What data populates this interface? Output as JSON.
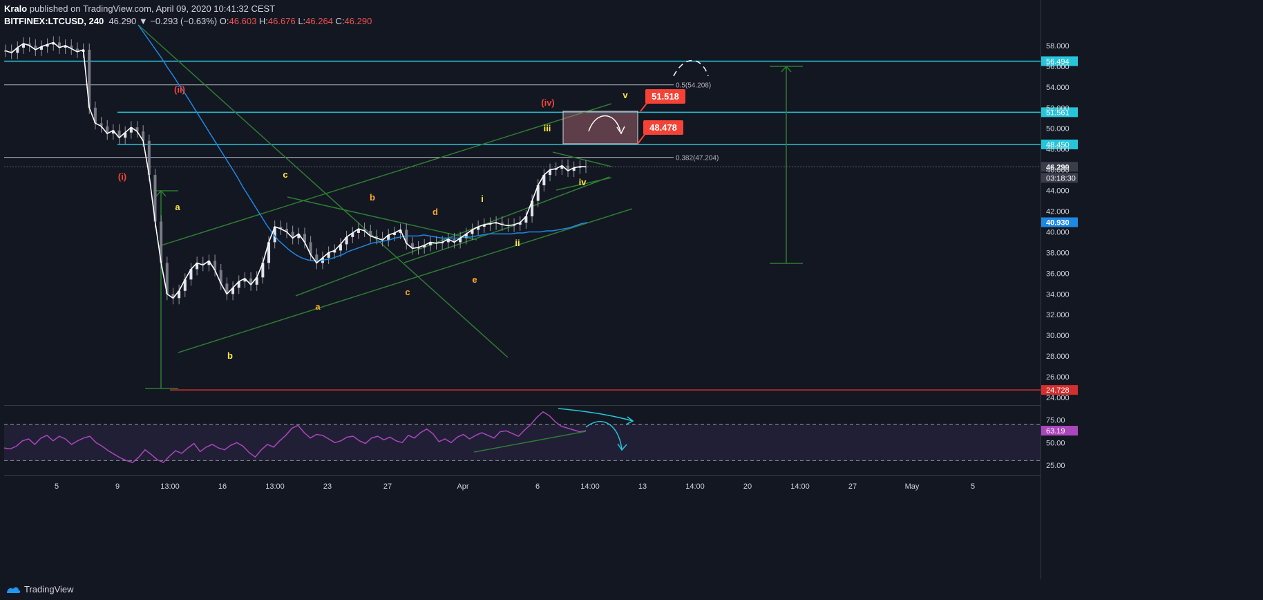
{
  "header": {
    "publisher_user": "Kralo",
    "publisher_rest": " published on TradingView.com, April 09, 2020 10:41:32 CEST",
    "symbol": "BITFINEX:LTCUSD, 240",
    "last": "46.290",
    "change": "▼ −0.293 (−0.63%)",
    "o_label": "O:",
    "o_value": "46.603",
    "h_label": "H:",
    "h_value": "46.676",
    "l_label": "L:",
    "l_value": "46.264",
    "c_label": "C:",
    "c_value": "46.290"
  },
  "footer": {
    "brand": "TradingView"
  },
  "colors": {
    "background": "#131722",
    "cyan_level": "#26c6da",
    "grey_level": "#b2b5be",
    "red_level": "#d32f2f",
    "trend_green": "#2e7d32",
    "price_white": "#ffffff",
    "ma_blue": "#1e88e5",
    "rsi_purple": "#ab47bc",
    "label_red": "#f44336"
  },
  "chart_data": [
    {
      "type": "line",
      "title": "",
      "price_axis": {
        "ticks": [
          "58.000",
          "56.000",
          "54.000",
          "52.000",
          "50.000",
          "48.000",
          "46.000",
          "44.000",
          "42.000",
          "40.000",
          "38.000",
          "36.000",
          "34.000",
          "32.000",
          "30.000",
          "28.000",
          "26.000",
          "24.000"
        ],
        "tick_values": [
          58,
          56,
          54,
          52,
          50,
          48,
          46,
          44,
          42,
          40,
          38,
          36,
          34,
          32,
          30,
          28,
          26,
          24
        ],
        "ylim": [
          23.4,
          60
        ]
      },
      "time_axis": {
        "ticks": [
          "5",
          "9",
          "13:00",
          "16",
          "13:00",
          "23",
          "27",
          "Apr",
          "6",
          "14:00",
          "13",
          "14:00",
          "20",
          "14:00",
          "27",
          "May",
          "5"
        ]
      },
      "horizontal_levels": [
        {
          "name": "resistance-56-494",
          "value": 56.494,
          "label": "56.494",
          "color": "#26c6da"
        },
        {
          "name": "fib-0-5",
          "value": 54.208,
          "label": "0.5(54.208)",
          "color": "#b2b5be"
        },
        {
          "name": "resistance-51-561",
          "value": 51.561,
          "label": "51.561",
          "color": "#26c6da"
        },
        {
          "name": "support-48-450",
          "value": 48.45,
          "label": "48.450",
          "color": "#26c6da"
        },
        {
          "name": "fib-0-382",
          "value": 47.204,
          "label": "0.382(47.204)",
          "color": "#b2b5be"
        },
        {
          "name": "low-24-728",
          "value": 24.728,
          "label": "24.728",
          "color": "#d32f2f"
        }
      ],
      "price_tags": [
        {
          "name": "last-price",
          "value": 46.29,
          "label": "46.290",
          "sub": "03:18:30",
          "color": "#3a3e4a"
        },
        {
          "name": "ma-value",
          "value": 40.93,
          "label": "40.930",
          "color": "#1e88e5"
        }
      ],
      "callouts": [
        {
          "name": "target-51-518",
          "label": "51.518",
          "value": 51.518
        },
        {
          "name": "target-48-478",
          "label": "48.478",
          "value": 48.478
        }
      ],
      "price_series": {
        "name": "",
        "values": [
          57.5,
          57.3,
          57.8,
          58.2,
          58.0,
          57.6,
          57.9,
          58.1,
          58.3,
          57.8,
          58.0,
          57.7,
          57.4,
          57.6,
          52.0,
          50.5,
          50.2,
          49.5,
          49.8,
          49.1,
          49.6,
          50.1,
          49.7,
          48.8,
          45.5,
          41.0,
          37.0,
          34.0,
          33.6,
          34.3,
          35.4,
          36.4,
          37.0,
          36.8,
          37.2,
          36.3,
          35.0,
          34.0,
          34.6,
          35.2,
          35.5,
          34.9,
          35.6,
          37.0,
          39.0,
          40.5,
          40.3,
          40.0,
          39.4,
          39.8,
          39.0,
          37.8,
          37.0,
          37.5,
          38.0,
          38.2,
          38.8,
          39.5,
          39.9,
          40.3,
          40.1,
          39.6,
          39.4,
          39.2,
          39.7,
          39.9,
          40.2,
          38.9,
          38.4,
          38.5,
          38.7,
          39.0,
          38.9,
          39.0,
          39.3,
          39.0,
          39.4,
          39.8,
          40.2,
          40.5,
          40.7,
          40.8,
          40.9,
          40.7,
          40.6,
          40.7,
          40.9,
          41.5,
          43.0,
          44.5,
          45.5,
          46.0,
          46.1,
          46.4,
          45.9,
          46.2,
          46.3,
          46.29
        ]
      },
      "ma_series": {
        "name": "",
        "values": [
          60.0,
          59.2,
          58.4,
          57.6,
          56.8,
          55.9,
          55.1,
          54.2,
          53.4,
          52.5,
          51.6,
          50.7,
          49.8,
          48.9,
          48.0,
          47.1,
          46.2,
          45.3,
          44.3,
          43.4,
          42.5,
          41.6,
          40.7,
          39.9,
          39.2,
          38.7,
          38.2,
          37.8,
          37.5,
          37.3,
          37.2,
          37.2,
          37.3,
          37.4,
          37.6,
          37.8,
          38.1,
          38.3,
          38.5,
          38.7,
          38.9,
          39.0,
          39.1,
          39.2,
          39.4,
          39.5,
          39.6,
          39.6,
          39.6,
          39.7,
          39.6,
          39.5,
          39.4,
          39.4,
          39.4,
          39.4,
          39.5,
          39.5,
          39.6,
          39.7,
          39.8,
          39.8,
          39.8,
          39.8,
          39.8,
          39.9,
          39.9,
          40.0,
          40.0,
          40.0,
          40.1,
          40.1,
          40.2,
          40.3,
          40.4,
          40.6,
          40.8,
          40.9
        ]
      },
      "wave_labels": [
        {
          "text": "(i)",
          "color": "#f44336"
        },
        {
          "text": "(ii)",
          "color": "#f44336"
        },
        {
          "text": "(iv)",
          "color": "#f44336"
        },
        {
          "text": "a",
          "color": "#ffeb3b"
        },
        {
          "text": "b",
          "color": "#ffeb3b"
        },
        {
          "text": "c",
          "color": "#ffeb3b"
        },
        {
          "text": "a",
          "color": "#ffa726"
        },
        {
          "text": "b",
          "color": "#ffa726"
        },
        {
          "text": "c",
          "color": "#ffa726"
        },
        {
          "text": "d",
          "color": "#ffa726"
        },
        {
          "text": "e",
          "color": "#ffa726"
        },
        {
          "text": "i",
          "color": "#ffeb3b"
        },
        {
          "text": "ii",
          "color": "#ffeb3b"
        },
        {
          "text": "iii",
          "color": "#ffeb3b"
        },
        {
          "text": "iv",
          "color": "#ffeb3b"
        },
        {
          "text": "v",
          "color": "#ffeb3b"
        }
      ]
    },
    {
      "type": "line",
      "title": "",
      "ylim": [
        15,
        90
      ],
      "y_ticks": [
        "75.00",
        "50.00",
        "25.00"
      ],
      "y_tick_values": [
        75,
        50,
        25
      ],
      "band": [
        30,
        70
      ],
      "last_value": "63.19",
      "rsi_series": {
        "name": "",
        "values": [
          44,
          43,
          46,
          52,
          54,
          48,
          55,
          58,
          52,
          57,
          54,
          48,
          52,
          55,
          57,
          50,
          46,
          41,
          37,
          33,
          30,
          28,
          34,
          42,
          37,
          31,
          28,
          35,
          41,
          38,
          44,
          49,
          40,
          45,
          48,
          44,
          42,
          47,
          50,
          46,
          39,
          34,
          42,
          48,
          45,
          52,
          58,
          66,
          69,
          61,
          55,
          59,
          58,
          54,
          50,
          52,
          56,
          57,
          52,
          49,
          55,
          57,
          53,
          56,
          52,
          50,
          58,
          55,
          61,
          65,
          60,
          51,
          54,
          50,
          56,
          59,
          54,
          58,
          61,
          58,
          55,
          62,
          63,
          60,
          57,
          64,
          70,
          78,
          84,
          80,
          73,
          68,
          66,
          64,
          62,
          63.19
        ]
      }
    }
  ]
}
